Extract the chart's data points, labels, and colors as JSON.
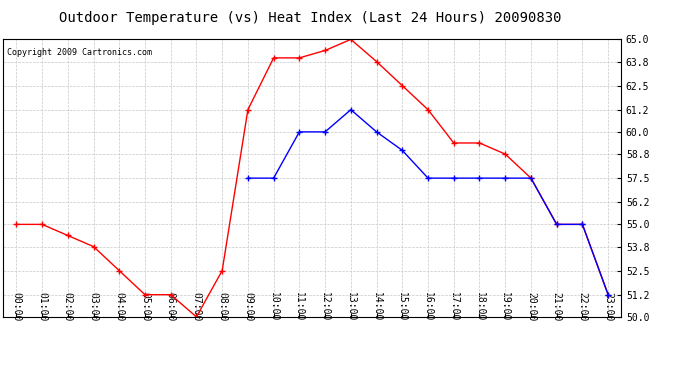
{
  "title": "Outdoor Temperature (vs) Heat Index (Last 24 Hours) 20090830",
  "copyright": "Copyright 2009 Cartronics.com",
  "hours": [
    0,
    1,
    2,
    3,
    4,
    5,
    6,
    7,
    8,
    9,
    10,
    11,
    12,
    13,
    14,
    15,
    16,
    17,
    18,
    19,
    20,
    21,
    22,
    23
  ],
  "red_temp": [
    55.0,
    55.0,
    54.4,
    53.8,
    52.5,
    51.2,
    51.2,
    50.0,
    52.5,
    61.2,
    64.0,
    64.0,
    64.4,
    65.0,
    63.8,
    62.5,
    61.2,
    59.4,
    59.4,
    58.8,
    57.5,
    55.0,
    55.0,
    51.2
  ],
  "blue_hours": [
    9,
    10,
    11,
    12,
    13,
    14,
    15,
    16,
    17,
    18,
    19,
    20,
    21,
    22,
    23
  ],
  "blue_heat": [
    57.5,
    57.5,
    60.0,
    60.0,
    61.2,
    60.0,
    59.0,
    57.5,
    57.5,
    57.5,
    57.5,
    57.5,
    55.0,
    55.0,
    51.2
  ],
  "red_color": "#ff0000",
  "blue_color": "#0000ff",
  "background_color": "#ffffff",
  "plot_bg_color": "#ffffff",
  "grid_color": "#c8c8c8",
  "ylim": [
    50.0,
    65.0
  ],
  "yticks": [
    50.0,
    51.2,
    52.5,
    53.8,
    55.0,
    56.2,
    57.5,
    58.8,
    60.0,
    61.2,
    62.5,
    63.8,
    65.0
  ],
  "title_fontsize": 10,
  "tick_fontsize": 7,
  "copyright_fontsize": 6
}
